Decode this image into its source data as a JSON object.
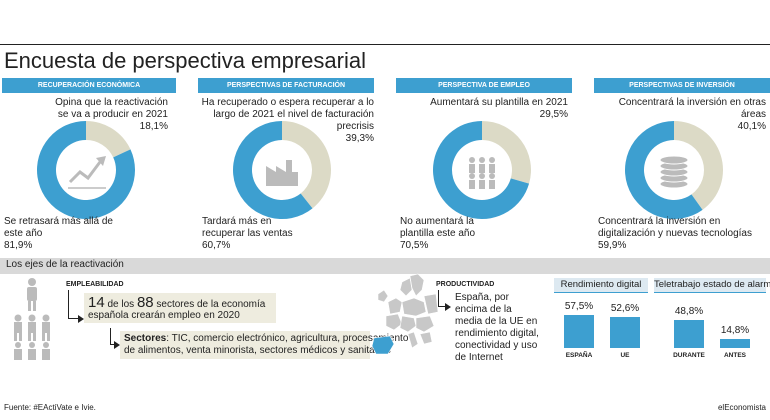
{
  "title": "Encuesta de perspectiva empresarial",
  "colors": {
    "blue": "#3d9fd0",
    "beige": "#dcdac6",
    "box_beige": "#eeecdf",
    "band_grey": "#d9d9d9"
  },
  "chart_data": [
    {
      "type": "pie",
      "title": "Recuperación económica",
      "labels": [
        "Opina que la reactivación se va a producir en 2021",
        "Se retrasará más allá de este año"
      ],
      "values": [
        18.1,
        81.9
      ],
      "value_labels": [
        "18,1%",
        "81,9%"
      ],
      "icon": "trend-chart-icon"
    },
    {
      "type": "pie",
      "title": "Perspectivas de facturación",
      "labels": [
        "Ha recuperado o espera recuperar a lo largo de 2021 el nivel de facturación precrisis",
        "Tardará más en recuperar las ventas"
      ],
      "values": [
        39.3,
        60.7
      ],
      "value_labels": [
        "39,3%",
        "60,7%"
      ],
      "icon": "factory-icon"
    },
    {
      "type": "pie",
      "title": "Perspectiva de empleo",
      "labels": [
        "Aumentará su plantilla en 2021",
        "No aumentará la plantilla este año"
      ],
      "values": [
        29.5,
        70.5
      ],
      "value_labels": [
        "29,5%",
        "70,5%"
      ],
      "icon": "people-icon"
    },
    {
      "type": "pie",
      "title": "Perspectivas de inversión",
      "labels": [
        "Concentrará la inversión en otras áreas",
        "Concentrará la inversión en digitalización y nuevas tecnologías"
      ],
      "values": [
        40.1,
        59.9
      ],
      "value_labels": [
        "40,1%",
        "59,9%"
      ],
      "icon": "coins-stack-icon"
    },
    {
      "type": "bar",
      "title": "Rendimiento digital",
      "categories": [
        "España",
        "UE"
      ],
      "values": [
        57.5,
        52.6
      ],
      "value_labels": [
        "57,5%",
        "52,6%"
      ]
    },
    {
      "type": "bar",
      "title": "Teletrabajo estado de alarma",
      "categories": [
        "Durante",
        "Antes"
      ],
      "values": [
        48.8,
        14.8
      ],
      "value_labels": [
        "48,8%",
        "14,8%"
      ]
    }
  ],
  "ejes": {
    "band_title": "Los ejes de la reactivación",
    "empleabilidad": {
      "label": "Empleabilidad",
      "n1": "14",
      "de_los": "de los",
      "n2": "88",
      "text1": "sectores de la economía",
      "text2": "española crearán empleo en 2020",
      "sectores_label": "Sectores",
      "sectores_line1": ": TIC, comercio electrónico, agricultura, procesamiento",
      "sectores_line2": "de alimentos, venta minorista, sectores médicos y sanitarios"
    },
    "productividad": {
      "label": "Productividad",
      "lines": [
        "España, por",
        "encima de la",
        "media de la UE en",
        "rendimiento digital,",
        "conectividad y uso",
        "de Internet"
      ]
    }
  },
  "footer": {
    "source": "Fuente: #EActiVate e Ivie.",
    "brand": "elEconomista"
  }
}
